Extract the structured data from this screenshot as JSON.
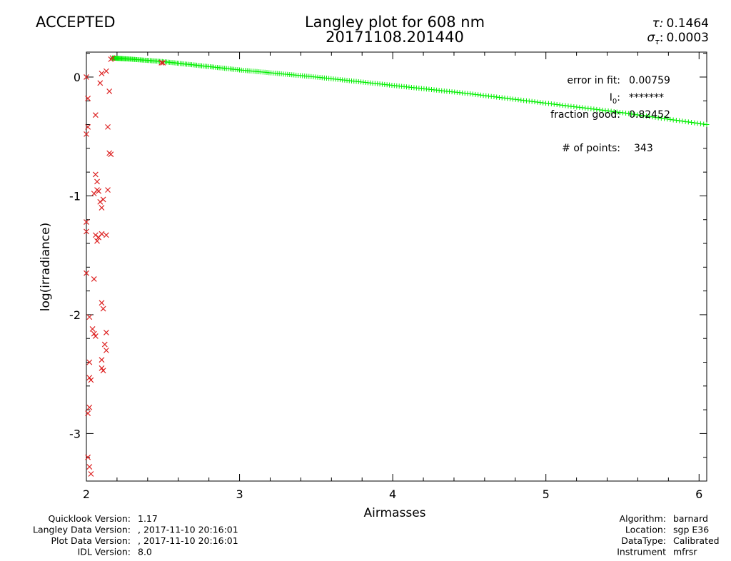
{
  "status": {
    "text": "ACCEPTED",
    "color": "#33ff33"
  },
  "title": {
    "line1": "Langley plot for 608 nm",
    "line2": "20171108.201440"
  },
  "tau": {
    "label": "τ:",
    "value": "0.1464",
    "sigma_label": "σ",
    "sigma_sub": "τ",
    "sigma_colon": ":",
    "sigma_value": "0.0003"
  },
  "stats": {
    "error_label": "error in fit:",
    "error_value": "0.00759",
    "i0_label": "I",
    "i0_sub": "0",
    "i0_colon": ":",
    "i0_value": "*******",
    "fraction_label": "fraction good:",
    "fraction_value": "0.82452",
    "points_label": "# of points:",
    "points_value": "343"
  },
  "footer_left": [
    {
      "label": "Quicklook Version:",
      "value": "1.17"
    },
    {
      "label": "Langley Data Version:",
      "value": ", 2017-11-10 20:16:01"
    },
    {
      "label": "Plot Data Version:",
      "value": ", 2017-11-10 20:16:01"
    },
    {
      "label": "IDL Version:",
      "value": "8.0"
    }
  ],
  "footer_right": [
    {
      "label": "Algorithm:",
      "value": "barnard"
    },
    {
      "label": "Location:",
      "value": "sgp E36"
    },
    {
      "label": "DataType:",
      "value": "Calibrated"
    },
    {
      "label": "Instrument",
      "value": "mfrsr"
    }
  ],
  "chart_data": {
    "type": "scatter",
    "title": "Langley plot for 608 nm",
    "xlabel": "Airmasses",
    "ylabel": "log(irradiance)",
    "xlim": [
      2.0,
      6.05
    ],
    "ylim": [
      -3.4,
      0.21
    ],
    "x_ticks": [
      2,
      3,
      4,
      5,
      6
    ],
    "y_ticks": [
      0,
      -1,
      -2,
      -3
    ],
    "colors": {
      "accepted": "#00ee00",
      "rejected": "#dd2222"
    },
    "accepted_curve": {
      "points": [
        [
          2.17,
          0.16
        ],
        [
          2.3,
          0.15
        ],
        [
          2.5,
          0.13
        ],
        [
          3.0,
          0.06
        ],
        [
          3.5,
          0.0
        ],
        [
          4.0,
          -0.07
        ],
        [
          4.5,
          -0.14
        ],
        [
          5.0,
          -0.22
        ],
        [
          5.5,
          -0.3
        ],
        [
          6.05,
          -0.4
        ]
      ],
      "count": 282
    },
    "rejected_points": [
      [
        2.0,
        0.0
      ],
      [
        2.01,
        -0.18
      ],
      [
        2.01,
        -0.42
      ],
      [
        2.0,
        -0.48
      ],
      [
        2.06,
        -0.32
      ],
      [
        2.09,
        -0.05
      ],
      [
        2.1,
        0.03
      ],
      [
        2.13,
        0.05
      ],
      [
        2.15,
        -0.12
      ],
      [
        2.14,
        -0.42
      ],
      [
        2.15,
        -0.64
      ],
      [
        2.16,
        -0.65
      ],
      [
        2.14,
        -0.95
      ],
      [
        2.06,
        -0.82
      ],
      [
        2.07,
        -0.88
      ],
      [
        2.07,
        -0.95
      ],
      [
        2.05,
        -0.98
      ],
      [
        2.08,
        -0.96
      ],
      [
        2.09,
        -1.05
      ],
      [
        2.1,
        -1.1
      ],
      [
        2.11,
        -1.03
      ],
      [
        2.0,
        -1.22
      ],
      [
        2.0,
        -1.3
      ],
      [
        2.06,
        -1.33
      ],
      [
        2.07,
        -1.38
      ],
      [
        2.08,
        -1.35
      ],
      [
        2.1,
        -1.32
      ],
      [
        2.13,
        -1.33
      ],
      [
        2.0,
        -1.65
      ],
      [
        2.05,
        -1.7
      ],
      [
        2.02,
        -2.02
      ],
      [
        2.04,
        -2.12
      ],
      [
        2.05,
        -2.16
      ],
      [
        2.06,
        -2.18
      ],
      [
        2.1,
        -1.9
      ],
      [
        2.11,
        -1.95
      ],
      [
        2.12,
        -2.25
      ],
      [
        2.13,
        -2.3
      ],
      [
        2.13,
        -2.15
      ],
      [
        2.1,
        -2.38
      ],
      [
        2.1,
        -2.45
      ],
      [
        2.11,
        -2.47
      ],
      [
        2.02,
        -2.4
      ],
      [
        2.02,
        -2.53
      ],
      [
        2.03,
        -2.55
      ],
      [
        2.01,
        -2.83
      ],
      [
        2.02,
        -2.78
      ],
      [
        2.01,
        -3.2
      ],
      [
        2.02,
        -3.28
      ],
      [
        2.03,
        -3.34
      ],
      [
        2.17,
        0.16
      ],
      [
        2.16,
        0.15
      ],
      [
        2.5,
        0.12
      ],
      [
        2.49,
        0.12
      ]
    ]
  }
}
